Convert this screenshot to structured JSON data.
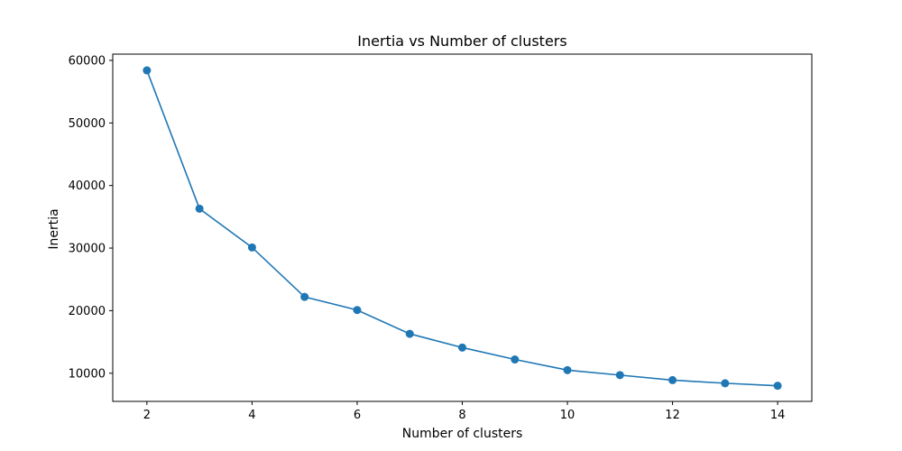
{
  "chart_data": {
    "type": "line",
    "title": "Inertia vs Number of clusters",
    "xlabel": "Number of clusters",
    "ylabel": "Inertia",
    "xlim": [
      1.35,
      14.65
    ],
    "ylim": [
      5500,
      61000
    ],
    "xticks": [
      2,
      4,
      6,
      8,
      10,
      12,
      14
    ],
    "yticks": [
      10000,
      20000,
      30000,
      40000,
      50000,
      60000
    ],
    "grid": false,
    "series": [
      {
        "color": "#1f77b4",
        "marker": "circle",
        "x": [
          2,
          3,
          4,
          5,
          6,
          7,
          8,
          9,
          10,
          11,
          12,
          13,
          14
        ],
        "y": [
          58400,
          36300,
          30100,
          22200,
          20100,
          16300,
          14100,
          12200,
          10500,
          9700,
          8900,
          8400,
          8000
        ]
      }
    ]
  }
}
